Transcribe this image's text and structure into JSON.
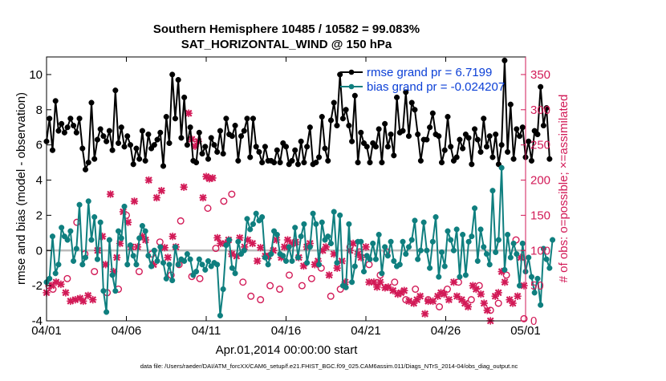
{
  "chart_data": {
    "type": "line",
    "title_line1": "Southern Hemisphere 10485 / 10582 = 99.083%",
    "title_line2": "SAT_HORIZONTAL_WIND @ 150 hPa",
    "xlabel": "Apr.01,2014 00:00:00 start",
    "ylabel_left": "rmse and bias (model - observation)",
    "ylabel_right": "# of obs: o=possible; ×=assimilated",
    "footer": "data file: /Users/raeder/DAI/ATM_forcXX/CAM6_setup/f.e21.FHIST_BGC.f09_025.CAM6assim.011/Diags_NTrS_2014-04/obs_diag_output.nc",
    "xlim": [
      0,
      30
    ],
    "ylim_left": [
      -4,
      11
    ],
    "ylim_right": [
      0,
      375
    ],
    "x_ticks": [
      {
        "value": 0,
        "label": "04/01"
      },
      {
        "value": 5,
        "label": "04/06"
      },
      {
        "value": 10,
        "label": "04/11"
      },
      {
        "value": 15,
        "label": "04/16"
      },
      {
        "value": 20,
        "label": "04/21"
      },
      {
        "value": 25,
        "label": "04/26"
      },
      {
        "value": 30,
        "label": "05/01"
      }
    ],
    "y_ticks_left": [
      -4,
      -2,
      0,
      2,
      4,
      6,
      8,
      10
    ],
    "y_ticks_right": [
      0,
      50,
      100,
      150,
      200,
      250,
      300,
      350
    ],
    "legend": [
      {
        "label": "rmse grand pr = 6.7199",
        "color": "#000000"
      },
      {
        "label": "bias grand pr = -0.024207",
        "color": "#0f7f7f"
      }
    ],
    "legend_text_color": "#0b3fd6",
    "colors": {
      "rmse": "#000000",
      "bias": "#0f7f7f",
      "obs": "#d21a57",
      "zero_line": "#bbbbbb",
      "right_axis": "#d21a57"
    },
    "series": [
      {
        "name": "rmse",
        "axis": "left",
        "values": [
          6.2,
          7.5,
          5.7,
          8.5,
          6.8,
          7.2,
          6.7,
          7.0,
          7.5,
          7.1,
          6.7,
          7.5,
          5.8,
          4.6,
          5.0,
          8.4,
          5.2,
          6.3,
          6.9,
          6.5,
          6.2,
          6.8,
          5.7,
          9.1,
          6.1,
          7.0,
          5.9,
          6.5,
          6.0,
          4.9,
          5.8,
          5.2,
          6.8,
          5.1,
          6.6,
          5.8,
          6.0,
          6.3,
          6.7,
          4.8,
          7.6,
          6.1,
          10.0,
          7.5,
          9.7,
          6.4,
          8.7,
          6.0,
          7.0,
          5.1,
          5.0,
          6.7,
          5.5,
          5.9,
          5.2,
          6.4,
          6.0,
          5.6,
          6.8,
          5.5,
          7.5,
          6.6,
          6.5,
          7.1,
          5.1,
          6.5,
          6.8,
          7.5,
          5.3,
          7.5,
          5.9,
          5.6,
          5.0,
          5.9,
          5.1,
          5.1,
          5.0,
          5.7,
          5.0,
          6.1,
          5.9,
          4.9,
          5.1,
          5.7,
          4.9,
          6.2,
          5.0,
          5.9,
          7.0,
          4.9,
          5.0,
          5.3,
          7.6,
          5.8,
          5.1,
          7.4,
          8.4,
          7.1,
          10.0,
          7.5,
          8.0,
          7.1,
          6.2,
          8.8,
          5.0,
          6.7,
          6.1,
          5.9,
          5.0,
          6.1,
          5.9,
          6.9,
          5.0,
          7.2,
          5.9,
          6.6,
          5.4,
          8.7,
          6.7,
          6.8,
          9.0,
          6.5,
          8.4,
          8.0,
          6.6,
          5.1,
          6.3,
          6.3,
          7.0,
          7.8,
          6.6,
          6.5,
          5.0,
          5.7,
          7.6,
          5.9,
          5.1,
          5.3,
          6.3,
          5.8,
          6.6,
          6.4,
          4.9,
          6.9,
          6.3,
          5.6,
          7.5,
          5.9,
          6.5,
          5.3,
          6.6,
          4.9,
          6.0,
          10.8,
          5.6,
          8.3,
          5.2,
          6.9,
          6.5,
          7.0,
          5.3,
          6.2,
          5.1,
          6.8,
          6.6,
          9.3,
          7.1,
          8.1,
          5.2
        ],
        "x_step": 0.1875
      },
      {
        "name": "bias",
        "axis": "left",
        "values": [
          -1.8,
          -1.6,
          0.8,
          -1.3,
          -0.8,
          1.3,
          0.8,
          0.6,
          1.1,
          -0.6,
          0.1,
          2.6,
          -0.8,
          -0.4,
          2.8,
          0.6,
          1.9,
          -0.5,
          1.6,
          -2.3,
          -3.5,
          0.6,
          -1.4,
          -2.3,
          1.1,
          0.7,
          2.5,
          -0.8,
          0.3,
          -0.3,
          -0.8,
          0.7,
          1.4,
          1.1,
          -0.3,
          -0.9,
          0.0,
          -0.6,
          0.2,
          -0.7,
          -1.6,
          -0.8,
          -1.7,
          0.2,
          -0.8,
          -0.5,
          -0.6,
          -0.2,
          -0.5,
          -1.4,
          -1.2,
          -0.5,
          -0.8,
          -1.1,
          -0.6,
          -0.9,
          -0.7,
          -0.8,
          -3.7,
          -2.2,
          0.3,
          0.6,
          -1.0,
          -1.3,
          0.5,
          -0.2,
          0.0,
          1.8,
          1.2,
          1.5,
          2.1,
          1.7,
          1.9,
          -0.4,
          -0.8,
          -0.2,
          1.1,
          0.9,
          -0.2,
          -0.3,
          -0.6,
          0.2,
          -0.6,
          1.3,
          -0.4,
          0.8,
          1.5,
          -0.7,
          0.2,
          2.1,
          1.5,
          -0.8,
          1.6,
          0.6,
          0.8,
          0.4,
          2.2,
          -0.7,
          2.0,
          -2.0,
          -2.1,
          1.5,
          -1.8,
          -0.9,
          0.5,
          0.5,
          -1.2,
          -0.3,
          -0.5,
          0.4,
          -0.5,
          0.9,
          -1.3,
          0.2,
          -0.3,
          0.5,
          -0.6,
          -0.9,
          -0.8,
          0.5,
          -0.2,
          0.2,
          0.6,
          1.7,
          -0.5,
          0.0,
          1.6,
          0.0,
          -1.0,
          0.5,
          1.9,
          -1.5,
          -0.1,
          -0.9,
          1.1,
          0.6,
          0.0,
          1.2,
          -1.5,
          0.9,
          -1.4,
          0.5,
          0.8,
          2.4,
          -0.6,
          1.2,
          0.2,
          -0.2,
          -0.8,
          3.4,
          -0.1,
          0.6,
          4.7,
          -1.1,
          0.9,
          -0.4,
          0.4,
          -0.2,
          -2.0,
          0.4,
          -1.2,
          -0.4,
          -1.5,
          -2.4,
          -1.6,
          -3.1,
          0.1,
          -0.5,
          -1.0,
          0.6
        ],
        "x_step": 0.1875
      }
    ],
    "obs_possible": [
      [
        0.15,
        50
      ],
      [
        0.4,
        45
      ],
      [
        1.3,
        60
      ],
      [
        1.9,
        140
      ],
      [
        2.4,
        95
      ],
      [
        3.0,
        70
      ],
      [
        3.8,
        40
      ],
      [
        4.5,
        45
      ],
      [
        5.0,
        150
      ],
      [
        5.8,
        70
      ],
      [
        6.6,
        95
      ],
      [
        7.1,
        112
      ],
      [
        7.8,
        65
      ],
      [
        8.3,
        80
      ],
      [
        8.4,
        142
      ],
      [
        9.1,
        63
      ],
      [
        9.6,
        60
      ],
      [
        10.1,
        160
      ],
      [
        10.6,
        103
      ],
      [
        11.1,
        170
      ],
      [
        11.6,
        180
      ],
      [
        12.3,
        55
      ],
      [
        12.8,
        35
      ],
      [
        13.4,
        30
      ],
      [
        14.0,
        50
      ],
      [
        14.6,
        45
      ],
      [
        15.2,
        65
      ],
      [
        16.0,
        50
      ],
      [
        16.6,
        60
      ],
      [
        17.2,
        75
      ],
      [
        17.8,
        35
      ],
      [
        18.4,
        45
      ],
      [
        19.0,
        105
      ],
      [
        19.6,
        98
      ],
      [
        20.2,
        80
      ],
      [
        20.9,
        65
      ],
      [
        21.3,
        98
      ],
      [
        21.8,
        55
      ],
      [
        22.5,
        30
      ],
      [
        23.1,
        45
      ],
      [
        23.9,
        30
      ],
      [
        24.6,
        20
      ],
      [
        25.1,
        45
      ],
      [
        25.8,
        55
      ],
      [
        26.6,
        30
      ],
      [
        27.1,
        50
      ],
      [
        27.8,
        15
      ],
      [
        28.3,
        25
      ],
      [
        28.8,
        65
      ],
      [
        29.4,
        115
      ],
      [
        29.9,
        3
      ]
    ],
    "obs_assimilated": [
      [
        0.0,
        40
      ],
      [
        0.3,
        50
      ],
      [
        0.6,
        55
      ],
      [
        0.9,
        52
      ],
      [
        1.2,
        40
      ],
      [
        1.5,
        28
      ],
      [
        1.8,
        30
      ],
      [
        2.1,
        32
      ],
      [
        2.3,
        28
      ],
      [
        2.6,
        36
      ],
      [
        2.9,
        30
      ],
      [
        3.2,
        100
      ],
      [
        3.5,
        120
      ],
      [
        3.7,
        80
      ],
      [
        4.0,
        180
      ],
      [
        4.2,
        70
      ],
      [
        4.4,
        90
      ],
      [
        4.6,
        110
      ],
      [
        4.8,
        155
      ],
      [
        5.1,
        140
      ],
      [
        5.3,
        105
      ],
      [
        5.5,
        170
      ],
      [
        5.7,
        105
      ],
      [
        6.0,
        120
      ],
      [
        6.2,
        115
      ],
      [
        6.4,
        200
      ],
      [
        6.7,
        80
      ],
      [
        6.9,
        175
      ],
      [
        7.2,
        185
      ],
      [
        7.4,
        104
      ],
      [
        7.6,
        90
      ],
      [
        7.9,
        120
      ],
      [
        8.1,
        105
      ],
      [
        8.6,
        190
      ],
      [
        8.9,
        295
      ],
      [
        9.1,
        258
      ],
      [
        9.3,
        248
      ],
      [
        9.5,
        255
      ],
      [
        9.8,
        175
      ],
      [
        10.0,
        205
      ],
      [
        10.2,
        202
      ],
      [
        10.4,
        203
      ],
      [
        10.7,
        118
      ],
      [
        10.9,
        110
      ],
      [
        11.2,
        110
      ],
      [
        11.4,
        115
      ],
      [
        11.6,
        95
      ],
      [
        11.9,
        92
      ],
      [
        12.1,
        118
      ],
      [
        12.4,
        105
      ],
      [
        12.6,
        115
      ],
      [
        12.9,
        110
      ],
      [
        13.2,
        85
      ],
      [
        13.4,
        104
      ],
      [
        13.7,
        92
      ],
      [
        13.9,
        92
      ],
      [
        14.2,
        100
      ],
      [
        14.4,
        115
      ],
      [
        14.7,
        90
      ],
      [
        14.9,
        105
      ],
      [
        15.1,
        115
      ],
      [
        15.4,
        110
      ],
      [
        15.6,
        112
      ],
      [
        15.8,
        90
      ],
      [
        16.1,
        78
      ],
      [
        16.3,
        105
      ],
      [
        16.5,
        110
      ],
      [
        16.8,
        80
      ],
      [
        17.0,
        85
      ],
      [
        17.3,
        100
      ],
      [
        17.5,
        105
      ],
      [
        17.7,
        65
      ],
      [
        18.0,
        95
      ],
      [
        18.2,
        75
      ],
      [
        18.5,
        85
      ],
      [
        18.7,
        55
      ],
      [
        19.0,
        100
      ],
      [
        19.2,
        110
      ],
      [
        19.5,
        95
      ],
      [
        19.7,
        90
      ],
      [
        20.0,
        105
      ],
      [
        20.2,
        55
      ],
      [
        20.5,
        55
      ],
      [
        20.7,
        48
      ],
      [
        20.9,
        55
      ],
      [
        21.2,
        47
      ],
      [
        21.4,
        48
      ],
      [
        21.7,
        43
      ],
      [
        22.0,
        38
      ],
      [
        22.2,
        40
      ],
      [
        22.4,
        43
      ],
      [
        22.7,
        28
      ],
      [
        23.0,
        25
      ],
      [
        23.2,
        30
      ],
      [
        23.4,
        35
      ],
      [
        23.7,
        10
      ],
      [
        23.9,
        28
      ],
      [
        24.2,
        28
      ],
      [
        24.5,
        35
      ],
      [
        24.7,
        40
      ],
      [
        24.9,
        38
      ],
      [
        25.2,
        30
      ],
      [
        25.5,
        55
      ],
      [
        25.7,
        35
      ],
      [
        26.0,
        30
      ],
      [
        26.2,
        25
      ],
      [
        26.4,
        20
      ],
      [
        26.7,
        50
      ],
      [
        26.9,
        45
      ],
      [
        27.2,
        38
      ],
      [
        27.4,
        25
      ],
      [
        27.6,
        15
      ],
      [
        27.8,
        0
      ],
      [
        28.1,
        35
      ],
      [
        28.3,
        40
      ],
      [
        28.5,
        70
      ],
      [
        28.7,
        55
      ],
      [
        29.0,
        30
      ],
      [
        29.2,
        25
      ],
      [
        29.5,
        35
      ],
      [
        29.7,
        90
      ],
      [
        29.9,
        50
      ]
    ]
  }
}
